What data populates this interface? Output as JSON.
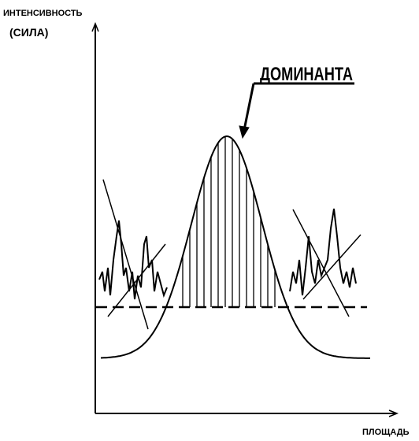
{
  "y_axis": {
    "label": "ИНТЕНСИВНОСТЬ",
    "sublabel": "(СИЛА)"
  },
  "x_axis": {
    "label": "ПЛОЩАДЬ"
  },
  "annotation": {
    "label": "ДОМИНАНТА"
  }
}
